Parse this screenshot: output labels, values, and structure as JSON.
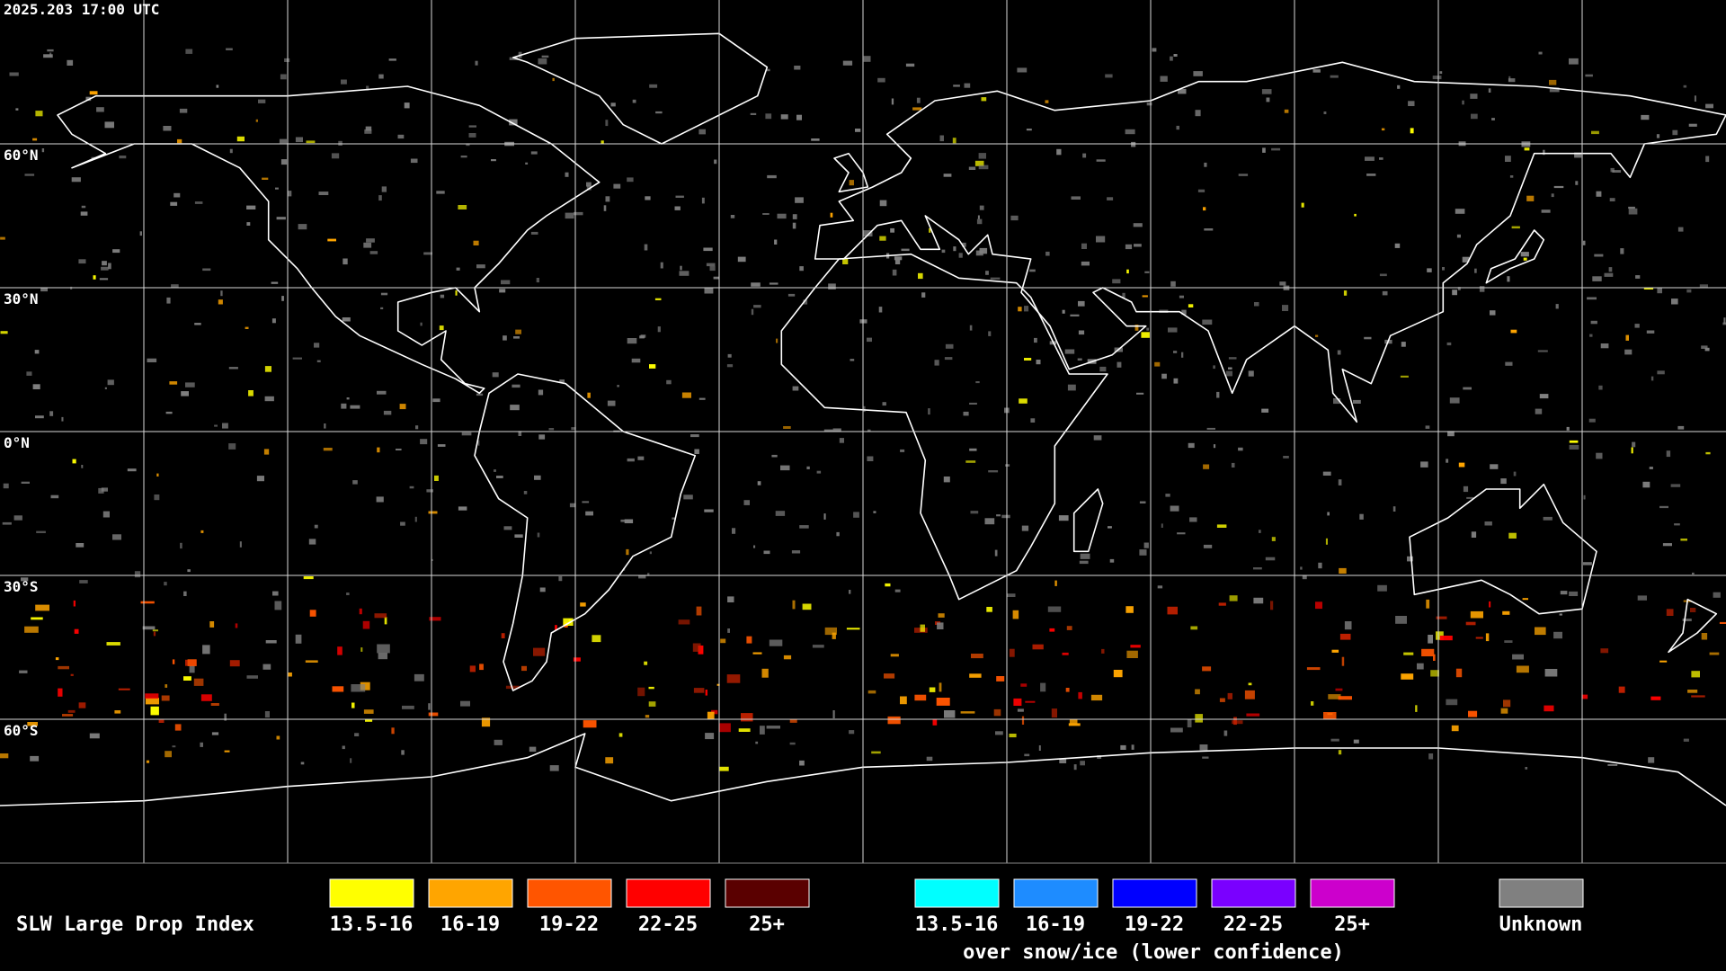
{
  "timestamp": "2025.203 17:00 UTC",
  "latitude_labels": [
    "60°N",
    "30°N",
    "0°N",
    "30°S",
    "60°S"
  ],
  "legend": {
    "title": "SLW Large Drop Index",
    "main": [
      {
        "label": "13.5-16",
        "color": "#ffff00"
      },
      {
        "label": "16-19",
        "color": "#ffa500"
      },
      {
        "label": "19-22",
        "color": "#ff5500"
      },
      {
        "label": "22-25",
        "color": "#ff0000"
      },
      {
        "label": "25+",
        "color": "#5a0000"
      }
    ],
    "snow_ice": [
      {
        "label": "13.5-16",
        "color": "#00ffff"
      },
      {
        "label": "16-19",
        "color": "#1e8cff"
      },
      {
        "label": "19-22",
        "color": "#0000ff"
      },
      {
        "label": "22-25",
        "color": "#7a00ff"
      },
      {
        "label": "25+",
        "color": "#cc00cc"
      }
    ],
    "snow_ice_note": "over snow/ice (lower confidence)",
    "unknown": {
      "label": "Unknown",
      "color": "#808080"
    }
  }
}
